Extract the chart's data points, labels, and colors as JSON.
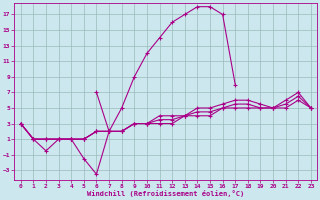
{
  "xlabel": "Windchill (Refroidissement éolien,°C)",
  "bg_color": "#cce8ee",
  "line_color": "#aa0088",
  "grid_color": "#99bbbb",
  "xlim": [
    -0.5,
    23.5
  ],
  "ylim": [
    -4.2,
    18.5
  ],
  "xticks": [
    0,
    1,
    2,
    3,
    4,
    5,
    6,
    7,
    8,
    9,
    10,
    11,
    12,
    13,
    14,
    15,
    16,
    17,
    18,
    19,
    20,
    21,
    22,
    23
  ],
  "yticks": [
    -3,
    -1,
    1,
    3,
    5,
    7,
    9,
    11,
    13,
    15,
    17
  ],
  "series": [
    {
      "x": [
        6,
        7,
        8,
        9,
        10,
        11,
        12,
        13,
        14,
        15,
        16,
        17
      ],
      "y": [
        7,
        2,
        5,
        9,
        12,
        14,
        16,
        17,
        18,
        18,
        17,
        8
      ]
    },
    {
      "x": [
        0,
        1,
        2,
        3,
        4,
        5,
        6,
        7
      ],
      "y": [
        3,
        1,
        -0.5,
        1,
        1,
        -1.5,
        -3.5,
        2
      ]
    },
    {
      "x": [
        0,
        1,
        2,
        3,
        4,
        5,
        6,
        7,
        8,
        9,
        10,
        11,
        12,
        13,
        14,
        15,
        16,
        17,
        18,
        19,
        20,
        21,
        22,
        23
      ],
      "y": [
        3,
        1,
        1,
        1,
        1,
        1,
        2,
        2,
        2,
        3,
        3,
        3,
        3,
        4,
        4,
        4,
        5,
        5,
        5,
        5,
        5,
        5,
        6,
        5
      ]
    },
    {
      "x": [
        0,
        1,
        2,
        3,
        4,
        5,
        6,
        7,
        8,
        9,
        10,
        11,
        12,
        13,
        14,
        15,
        16,
        17,
        18,
        19,
        20,
        21,
        22,
        23
      ],
      "y": [
        3,
        1,
        1,
        1,
        1,
        1,
        2,
        2,
        2,
        3,
        3,
        3.5,
        3.5,
        4,
        4.5,
        4.5,
        5,
        5.5,
        5.5,
        5,
        5,
        5.5,
        6.5,
        5
      ]
    },
    {
      "x": [
        0,
        1,
        2,
        3,
        4,
        5,
        6,
        7,
        8,
        9,
        10,
        11,
        12,
        13,
        14,
        15,
        16,
        17,
        18,
        19,
        20,
        21,
        22,
        23
      ],
      "y": [
        3,
        1,
        1,
        1,
        1,
        1,
        2,
        2,
        2,
        3,
        3,
        4,
        4,
        4,
        5,
        5,
        5.5,
        6,
        6,
        5.5,
        5,
        6,
        7,
        5
      ]
    }
  ]
}
